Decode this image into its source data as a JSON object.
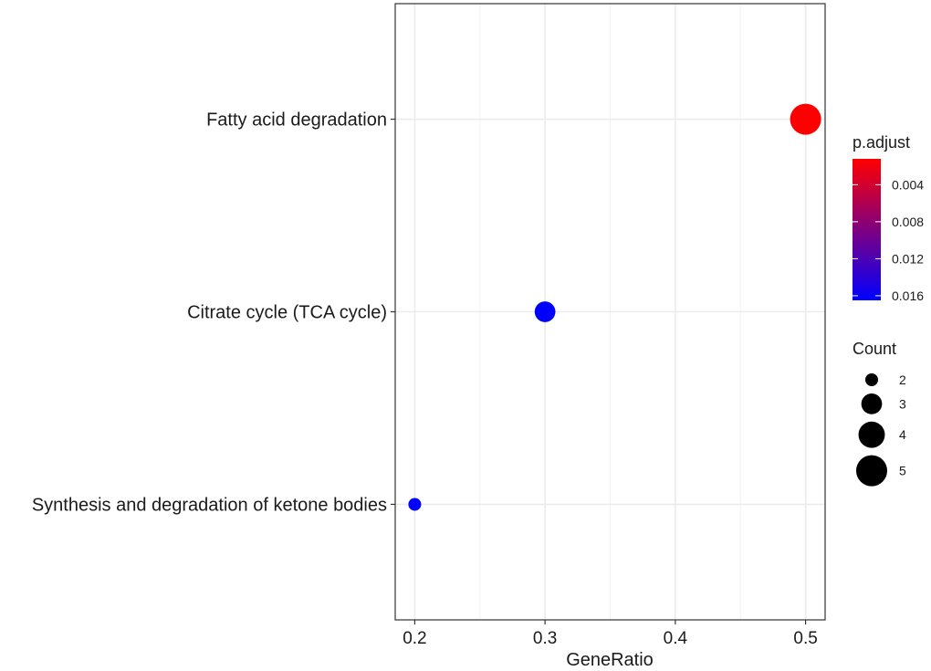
{
  "chart_data": {
    "type": "scatter",
    "title": "",
    "xlabel": "GeneRatio",
    "ylabel": "",
    "xlim": [
      0.185,
      0.515
    ],
    "x_ticks": [
      0.2,
      0.3,
      0.4,
      0.5
    ],
    "x_tick_labels": [
      "0.2",
      "0.3",
      "0.4",
      "0.5"
    ],
    "categories": [
      "Fatty acid degradation",
      "Citrate cycle (TCA cycle)",
      "Synthesis and degradation of ketone bodies"
    ],
    "points": [
      {
        "term": "Fatty acid degradation",
        "gene_ratio": 0.5,
        "count": 5,
        "p_adjust": 0.0012
      },
      {
        "term": "Citrate cycle (TCA cycle)",
        "gene_ratio": 0.3,
        "count": 3,
        "p_adjust": 0.0165
      },
      {
        "term": "Synthesis and degradation of ketone bodies",
        "gene_ratio": 0.2,
        "count": 2,
        "p_adjust": 0.0165
      }
    ],
    "grid": true,
    "color_legend": {
      "title": "p.adjust",
      "range": [
        0.0012,
        0.0165
      ],
      "ticks": [
        0.004,
        0.008,
        0.012,
        0.016
      ],
      "tick_labels": [
        "0.004",
        "0.008",
        "0.012",
        "0.016"
      ],
      "low_color": "#ff0000",
      "high_color": "#0000ff"
    },
    "size_legend": {
      "title": "Count",
      "values": [
        2,
        3,
        4,
        5
      ],
      "labels": [
        "2",
        "3",
        "4",
        "5"
      ]
    },
    "legend_position": "right"
  }
}
